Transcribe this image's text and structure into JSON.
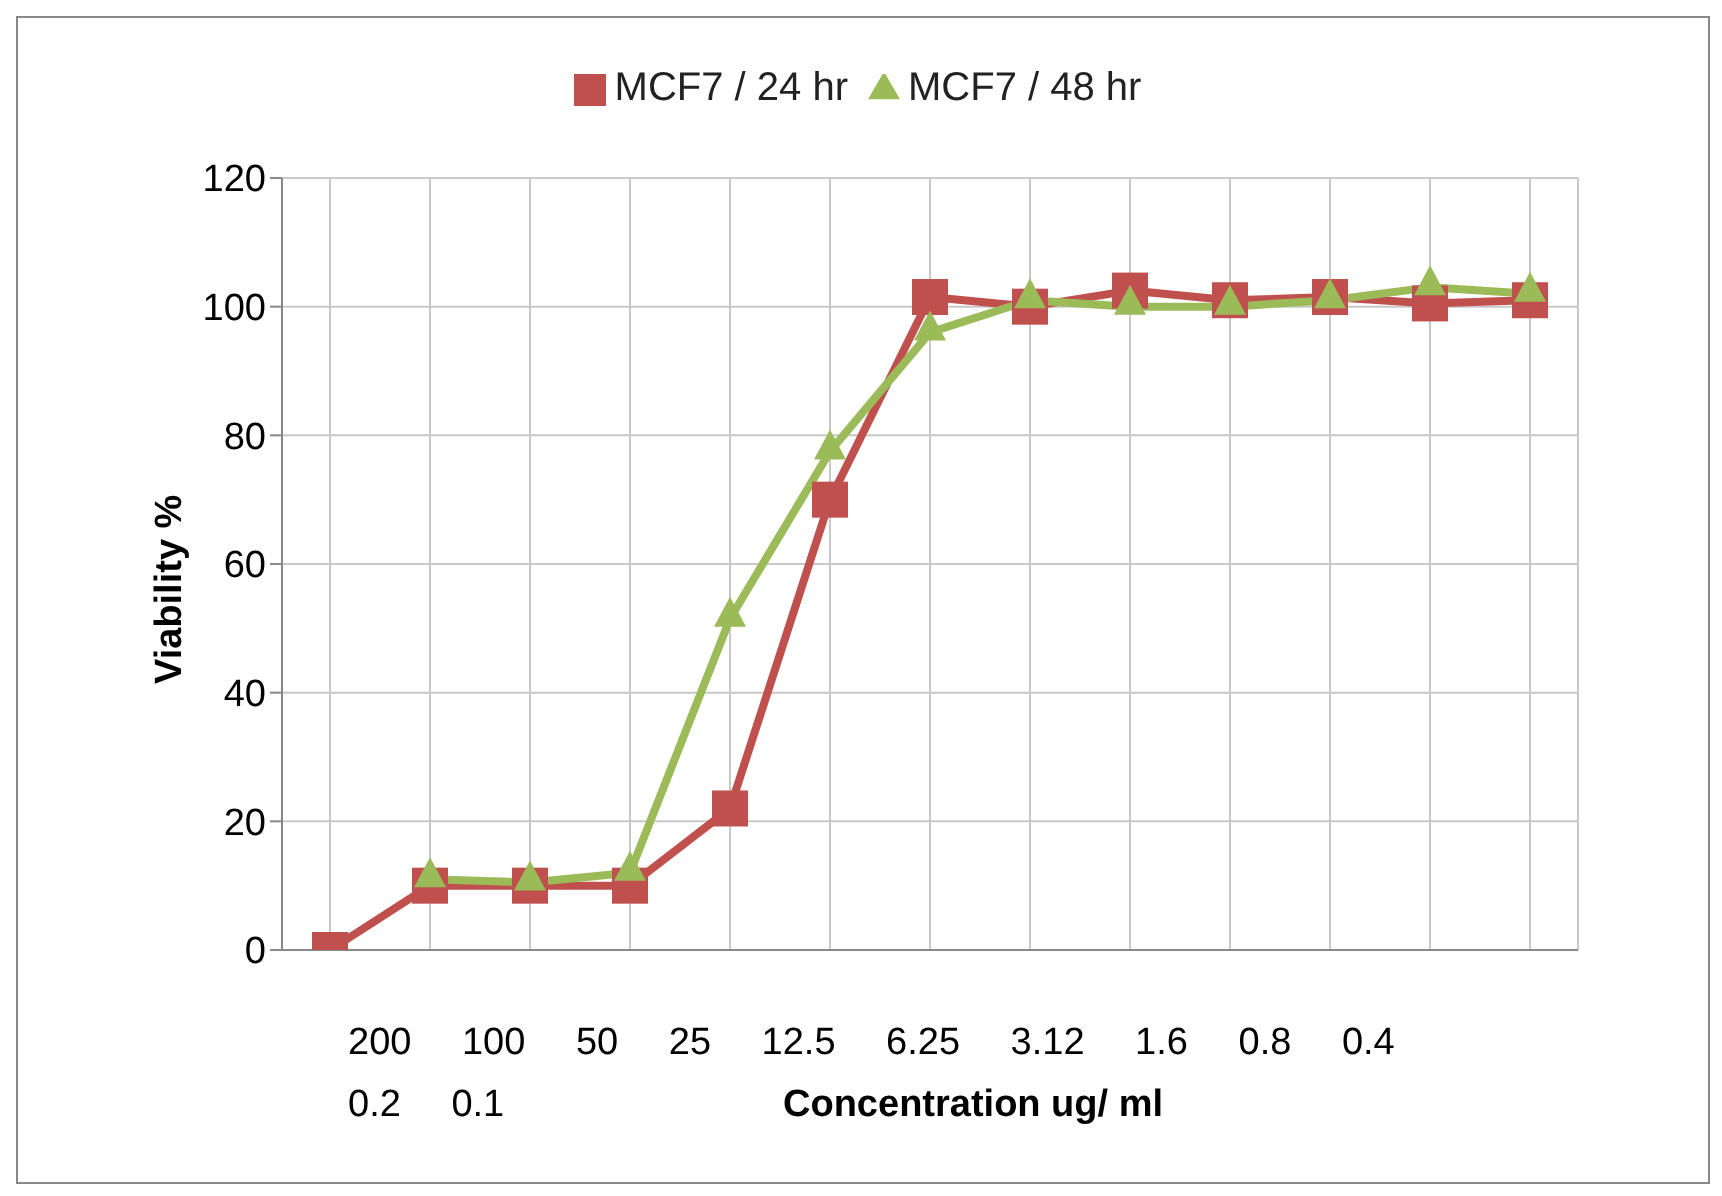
{
  "chart_data": {
    "type": "line",
    "xlabel": "Concentration ug/ ml",
    "ylabel": "Viability %",
    "categories": [
      null,
      null,
      null,
      null,
      null,
      null,
      null,
      null,
      null,
      null,
      null,
      null,
      null
    ],
    "series": [
      {
        "name": "MCF7 / 24 hr",
        "color": "#c0504d",
        "marker": "square",
        "values": [
          0,
          10,
          10,
          10,
          22,
          70,
          101.5,
          100,
          102.5,
          101,
          101.5,
          100.5,
          101
        ]
      },
      {
        "name": "MCF7 / 48 hr",
        "color": "#9bbb59",
        "marker": "triangle",
        "values": [
          null,
          11,
          10.5,
          12,
          51.5,
          77.5,
          96,
          101,
          100,
          100,
          101,
          103,
          102
        ]
      }
    ],
    "ylim": [
      0,
      120
    ],
    "yticks": [
      0,
      20,
      40,
      60,
      80,
      100,
      120
    ],
    "grid": true,
    "legend": "top",
    "annotations": [
      "200 100 50 25 12.5 6.25 3.12 1.6 0.8 0.4 0.2 0.1"
    ]
  }
}
